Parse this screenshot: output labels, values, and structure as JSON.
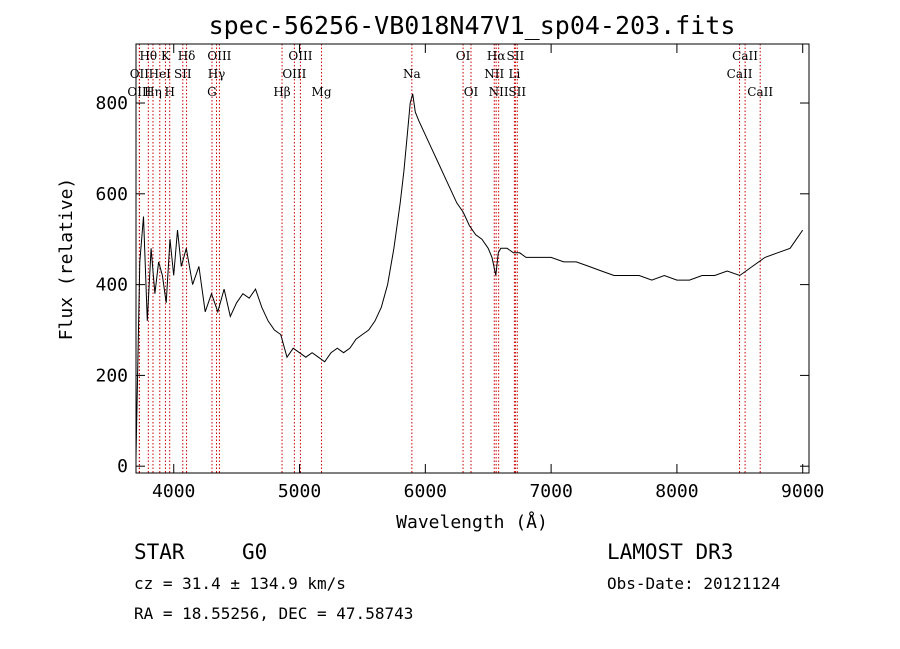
{
  "chart_data": {
    "type": "line",
    "title": "spec-56256-VB018N47V1_sp04-203.fits",
    "xlabel": "Wavelength (Å)",
    "ylabel": "Flux (relative)",
    "xlim": [
      3700,
      9050
    ],
    "ylim": [
      -15,
      930
    ],
    "x_ticks": [
      4000,
      5000,
      6000,
      7000,
      8000,
      9000
    ],
    "y_ticks": [
      0,
      200,
      400,
      600,
      800
    ],
    "grid": false,
    "series": [
      {
        "name": "flux",
        "x": [
          3700,
          3730,
          3760,
          3790,
          3820,
          3850,
          3880,
          3910,
          3940,
          3970,
          4000,
          4030,
          4060,
          4100,
          4150,
          4200,
          4250,
          4300,
          4350,
          4400,
          4450,
          4500,
          4550,
          4600,
          4650,
          4700,
          4750,
          4800,
          4850,
          4900,
          4950,
          5000,
          5050,
          5100,
          5150,
          5200,
          5250,
          5300,
          5350,
          5400,
          5450,
          5500,
          5550,
          5600,
          5650,
          5700,
          5750,
          5800,
          5830,
          5860,
          5880,
          5900,
          5920,
          5950,
          6000,
          6050,
          6100,
          6150,
          6200,
          6250,
          6300,
          6350,
          6400,
          6450,
          6500,
          6530,
          6560,
          6580,
          6600,
          6650,
          6700,
          6750,
          6800,
          6900,
          7000,
          7100,
          7200,
          7300,
          7400,
          7500,
          7600,
          7700,
          7800,
          7900,
          8000,
          8100,
          8200,
          8300,
          8400,
          8500,
          8600,
          8700,
          8800,
          8900,
          8950,
          9000
        ],
        "y": [
          20,
          450,
          550,
          320,
          480,
          380,
          450,
          420,
          360,
          500,
          420,
          520,
          440,
          480,
          400,
          440,
          340,
          380,
          340,
          390,
          330,
          360,
          380,
          370,
          390,
          350,
          320,
          300,
          290,
          240,
          260,
          250,
          240,
          250,
          240,
          230,
          250,
          260,
          250,
          260,
          280,
          290,
          300,
          320,
          350,
          400,
          480,
          580,
          650,
          740,
          800,
          820,
          780,
          760,
          730,
          700,
          670,
          640,
          610,
          580,
          560,
          530,
          510,
          500,
          480,
          460,
          420,
          470,
          480,
          480,
          470,
          470,
          460,
          460,
          460,
          450,
          450,
          440,
          430,
          420,
          420,
          420,
          410,
          420,
          410,
          410,
          420,
          420,
          430,
          420,
          440,
          460,
          470,
          480,
          500,
          520
        ]
      }
    ],
    "spectral_lines": [
      {
        "label": "Hθ",
        "wavelength": 3798,
        "row": 1
      },
      {
        "label": "OII",
        "wavelength": 3727,
        "row": 2
      },
      {
        "label": "OIII",
        "wavelength": 3727,
        "row": 3
      },
      {
        "label": "Hη",
        "wavelength": 3835,
        "row": 3
      },
      {
        "label": "HeI",
        "wavelength": 3889,
        "row": 2
      },
      {
        "label": "K",
        "wavelength": 3934,
        "row": 1
      },
      {
        "label": "H",
        "wavelength": 3968,
        "row": 3
      },
      {
        "label": "SII",
        "wavelength": 4072,
        "row": 2
      },
      {
        "label": "Hδ",
        "wavelength": 4102,
        "row": 1
      },
      {
        "label": "OIII",
        "wavelength": 4363,
        "row": 1
      },
      {
        "label": "Hγ",
        "wavelength": 4340,
        "row": 2
      },
      {
        "label": "G",
        "wavelength": 4304,
        "row": 3
      },
      {
        "label": "Hβ",
        "wavelength": 4861,
        "row": 3
      },
      {
        "label": "OIII",
        "wavelength": 4959,
        "row": 2
      },
      {
        "label": "OIII",
        "wavelength": 5007,
        "row": 1
      },
      {
        "label": "Mg",
        "wavelength": 5175,
        "row": 3
      },
      {
        "label": "Na",
        "wavelength": 5893,
        "row": 2
      },
      {
        "label": "OI",
        "wavelength": 6300,
        "row": 1
      },
      {
        "label": "OI",
        "wavelength": 6363,
        "row": 3
      },
      {
        "label": "Hα",
        "wavelength": 6563,
        "row": 1
      },
      {
        "label": "NII",
        "wavelength": 6548,
        "row": 2
      },
      {
        "label": "NII",
        "wavelength": 6583,
        "row": 3
      },
      {
        "label": "SII",
        "wavelength": 6716,
        "row": 1
      },
      {
        "label": "Li",
        "wavelength": 6708,
        "row": 2
      },
      {
        "label": "SII",
        "wavelength": 6731,
        "row": 3
      },
      {
        "label": "CaII",
        "wavelength": 8542,
        "row": 1
      },
      {
        "label": "CaII",
        "wavelength": 8498,
        "row": 2
      },
      {
        "label": "CaII",
        "wavelength": 8662,
        "row": 3
      }
    ]
  },
  "info": {
    "object_class": "STAR",
    "subclass": "G0",
    "survey": "LAMOST DR3",
    "redshift_line": "cz = 31.4 ± 134.9 km/s",
    "obs_date_line": "Obs-Date: 20121124",
    "coords_line": "RA =  18.55256, DEC =  47.58743"
  },
  "colors": {
    "spectrum": "#000000",
    "line_marker": "#cc0000",
    "axes": "#000000"
  }
}
